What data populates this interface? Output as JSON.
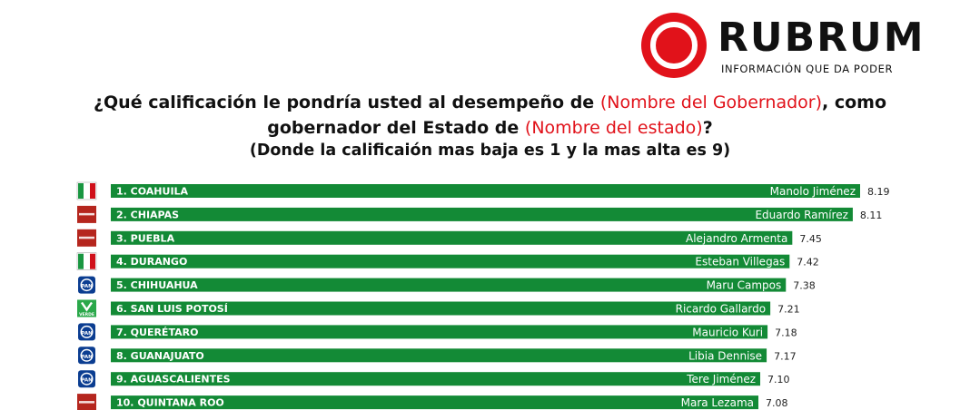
{
  "brand": {
    "logo_text": "RUBRUM",
    "tagline": "INFORMACIÓN QUE DA PODER",
    "red": "#e1121a"
  },
  "question": {
    "part1": "¿Qué calificación le pondría usted al desempeño de",
    "governor_placeholder": "(Nombre del Gobernador)",
    "part2": ", como",
    "part3": "gobernador del Estado de",
    "state_placeholder": "(Nombre del estado)",
    "part4": "?",
    "note": "(Donde la calificaión mas baja es 1 y la mas alta es 9)"
  },
  "chart_data": {
    "type": "bar",
    "orientation": "horizontal",
    "categories": [
      "1. COAHUILA",
      "2. CHIAPAS",
      "3. PUEBLA",
      "4. DURANGO",
      "5. CHIHUAHUA",
      "6. SAN LUIS POTOSÍ",
      "7. QUERÉTARO",
      "8. GUANAJUATO",
      "9. AGUASCALIENTES",
      "10. QUINTANA ROO"
    ],
    "labels": [
      "Manolo Jiménez",
      "Eduardo Ramírez",
      "Alejandro Armenta",
      "Esteban Villegas",
      "Maru Campos",
      "Ricardo Gallardo",
      "Mauricio Kuri",
      "Libia Dennise",
      "Tere Jiménez",
      "Mara Lezama"
    ],
    "values": [
      8.19,
      8.11,
      7.45,
      7.42,
      7.38,
      7.21,
      7.18,
      7.17,
      7.1,
      7.08
    ],
    "value_labels": [
      "8.19",
      "8.11",
      "7.45",
      "7.42",
      "7.38",
      "7.21",
      "7.18",
      "7.17",
      "7.10",
      "7.08"
    ],
    "parties": [
      "pri-icon",
      "morena-icon",
      "morena-icon",
      "pri-icon",
      "pan-icon",
      "verde-icon",
      "pan-icon",
      "pan-icon",
      "pan-icon",
      "morena-icon"
    ],
    "party_colors": {
      "pri": "#1a9641",
      "morena": "#b5261e",
      "pan": "#0b3d91",
      "verde": "#2aa84a"
    },
    "bar_color": "#138a36",
    "grid": false
  }
}
